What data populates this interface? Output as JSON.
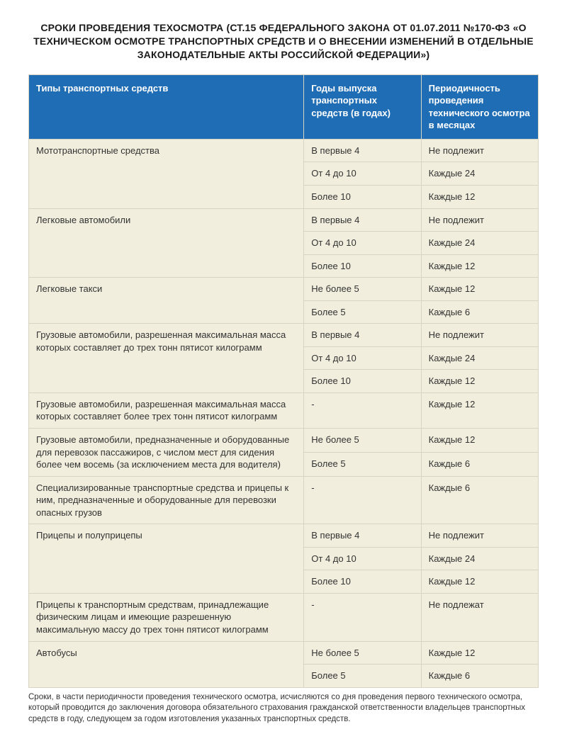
{
  "title": "СРОКИ ПРОВЕДЕНИЯ ТЕХОСМОТРА (СТ.15 ФЕДЕРАЛЬНОГО ЗАКОНА ОТ 01.07.2011 №170-ФЗ «О ТЕХНИЧЕСКОМ ОСМОТРЕ ТРАНСПОРТНЫХ СРЕДСТВ И О ВНЕСЕНИИ ИЗМЕНЕНИЙ В ОТДЕЛЬНЫЕ ЗАКОНОДАТЕЛЬНЫЕ АКТЫ РОССИЙСКОЙ ФЕДЕРАЦИИ»)",
  "columns": {
    "col1": "Типы транспортных средств",
    "col2": "Годы выпуска транспортных средств (в годах)",
    "col3": "Периодичность проведения технического осмотра в месяцах"
  },
  "groups": [
    {
      "label": "Мототранспортные средства",
      "rows": [
        {
          "age": "В первые 4",
          "period": "Не подлежит"
        },
        {
          "age": "От 4 до 10",
          "period": "Каждые 24"
        },
        {
          "age": "Более 10",
          "period": "Каждые 12"
        }
      ]
    },
    {
      "label": "Легковые автомобили",
      "rows": [
        {
          "age": "В первые 4",
          "period": "Не подлежит"
        },
        {
          "age": "От 4 до 10",
          "period": "Каждые 24"
        },
        {
          "age": "Более 10",
          "period": "Каждые 12"
        }
      ]
    },
    {
      "label": "Легковые такси",
      "rows": [
        {
          "age": "Не более 5",
          "period": "Каждые 12"
        },
        {
          "age": "Более 5",
          "period": "Каждые 6"
        }
      ]
    },
    {
      "label": "Грузовые автомобили, разрешенная максимальная масса которых составляет до трех тонн пятисот килограмм",
      "rows": [
        {
          "age": "В первые 4",
          "period": "Не подлежит"
        },
        {
          "age": "От 4 до 10",
          "period": "Каждые 24"
        },
        {
          "age": "Более 10",
          "period": "Каждые 12"
        }
      ]
    },
    {
      "label": "Грузовые автомобили, разрешенная максимальная масса которых составляет более трех тонн пятисот килограмм",
      "rows": [
        {
          "age": "-",
          "period": "Каждые 12"
        }
      ]
    },
    {
      "label": "Грузовые автомобили, предназначенные и оборудованные для перевозок пассажиров, с числом мест для сидения более чем восемь (за исключением места для водителя)",
      "rows": [
        {
          "age": "Не более 5",
          "period": "Каждые 12"
        },
        {
          "age": "Более 5",
          "period": "Каждые 6"
        }
      ]
    },
    {
      "label": "Специализированные транспортные средства и прицепы к ним, предназначенные и оборудованные для перевозки опасных грузов",
      "rows": [
        {
          "age": "-",
          "period": "Каждые 6"
        }
      ]
    },
    {
      "label": "Прицепы и полуприцепы",
      "rows": [
        {
          "age": "В первые 4",
          "period": "Не подлежит"
        },
        {
          "age": "От 4 до 10",
          "period": "Каждые 24"
        },
        {
          "age": "Более 10",
          "period": "Каждые 12"
        }
      ]
    },
    {
      "label": "Прицепы к транспортным средствам, принадлежащие физическим лицам и имеющие разрешенную максимальную массу до трех тонн пятисот килограмм",
      "rows": [
        {
          "age": "-",
          "period": "Не подлежат"
        }
      ]
    },
    {
      "label": "Автобусы",
      "rows": [
        {
          "age": "Не более 5",
          "period": "Каждые 12"
        },
        {
          "age": "Более 5",
          "period": "Каждые 6"
        }
      ]
    }
  ],
  "footnote": "Сроки, в части периодичности проведения технического осмотра, исчисляются со дня проведения первого технического осмотра, который проводится до заключения договора обязательного страхования гражданской ответственности владельцев транспортных средств в году, следующем за годом изготовления указанных транспортных средств."
}
